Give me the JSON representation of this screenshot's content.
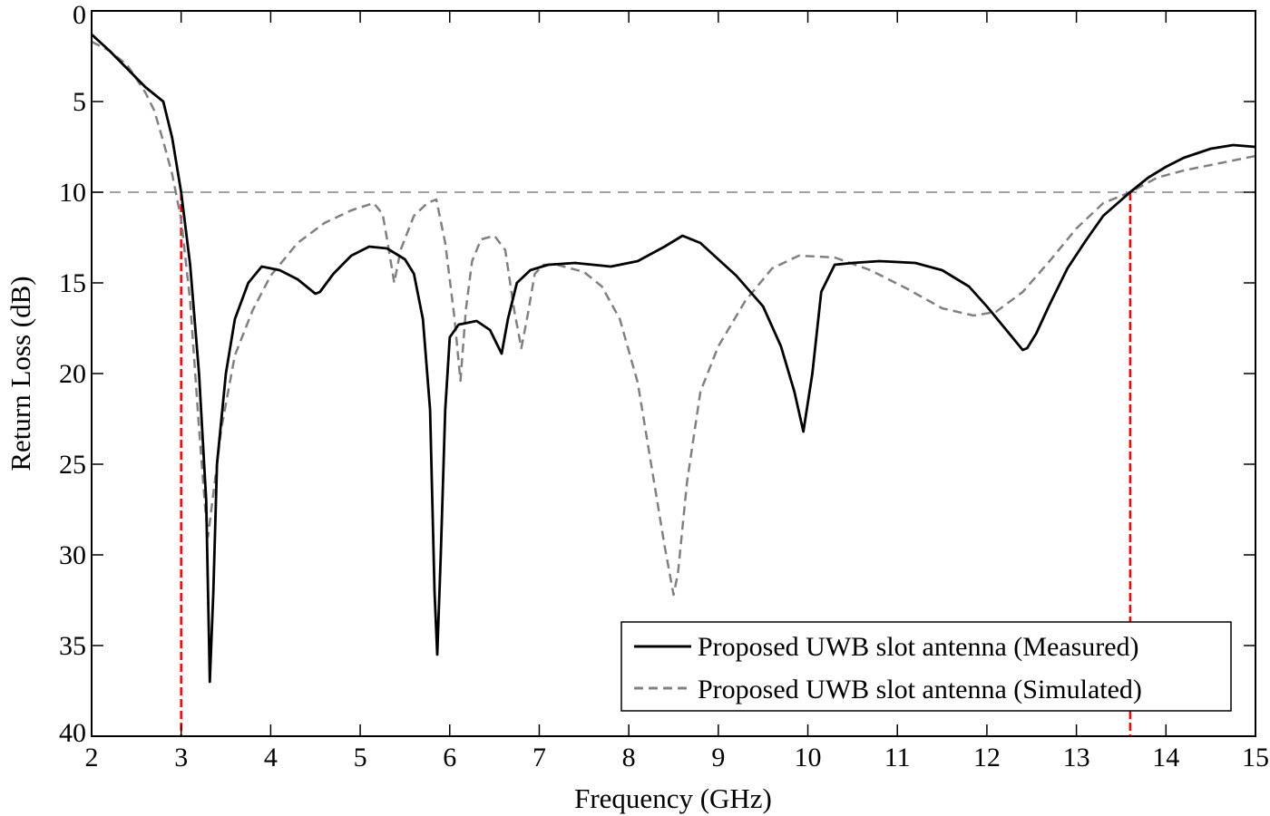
{
  "chart_data": {
    "type": "line",
    "title": "",
    "xlabel": "Frequency (GHz)",
    "ylabel": "Return Loss (dB)",
    "xlim": [
      2,
      15
    ],
    "ylim": [
      0,
      40
    ],
    "y_inverted": true,
    "grid": false,
    "x_ticks": [
      2,
      3,
      4,
      5,
      6,
      7,
      8,
      9,
      10,
      11,
      12,
      13,
      14,
      15
    ],
    "y_ticks": [
      0,
      5,
      10,
      15,
      20,
      25,
      30,
      35,
      40
    ],
    "legend_position": "lower right",
    "reference_lines": [
      {
        "type": "horizontal",
        "y": 10,
        "style": "dashed",
        "color": "#808080"
      },
      {
        "type": "vertical",
        "x": 3.0,
        "y_from": 10,
        "y_to": 40,
        "style": "dashed",
        "color": "#ff0000"
      },
      {
        "type": "vertical",
        "x": 13.6,
        "y_from": 10,
        "y_to": 40,
        "style": "dashed",
        "color": "#ff0000"
      }
    ],
    "series": [
      {
        "name": "Proposed UWB slot antenna (Measured)",
        "style": "solid",
        "color": "#000000",
        "x": [
          2.0,
          2.2,
          2.4,
          2.6,
          2.8,
          2.9,
          3.0,
          3.1,
          3.2,
          3.28,
          3.32,
          3.36,
          3.4,
          3.5,
          3.6,
          3.75,
          3.9,
          4.1,
          4.3,
          4.5,
          4.55,
          4.7,
          4.9,
          5.1,
          5.3,
          5.5,
          5.6,
          5.7,
          5.78,
          5.83,
          5.86,
          5.9,
          5.95,
          6.0,
          6.1,
          6.3,
          6.45,
          6.55,
          6.58,
          6.65,
          6.75,
          6.9,
          7.1,
          7.4,
          7.8,
          8.1,
          8.4,
          8.6,
          8.8,
          9.0,
          9.2,
          9.5,
          9.7,
          9.85,
          9.95,
          10.05,
          10.15,
          10.3,
          10.5,
          10.8,
          11.2,
          11.5,
          11.8,
          12.0,
          12.2,
          12.4,
          12.45,
          12.55,
          12.7,
          12.9,
          13.1,
          13.3,
          13.6,
          13.8,
          14.0,
          14.2,
          14.5,
          14.75,
          15.0
        ],
        "values": [
          1.3,
          2.2,
          3.2,
          4.2,
          5.0,
          7.0,
          10.0,
          14.0,
          20.0,
          27.0,
          37.0,
          32.0,
          25.0,
          20.0,
          17.0,
          15.0,
          14.1,
          14.3,
          14.8,
          15.6,
          15.5,
          14.5,
          13.5,
          13.0,
          13.1,
          13.7,
          14.5,
          17.0,
          22.0,
          32.0,
          35.5,
          30.0,
          22.0,
          18.0,
          17.3,
          17.1,
          17.6,
          18.6,
          18.9,
          17.0,
          15.0,
          14.3,
          14.0,
          13.9,
          14.1,
          13.8,
          13.0,
          12.4,
          12.8,
          13.7,
          14.6,
          16.3,
          18.5,
          21.0,
          23.2,
          20.0,
          15.5,
          14.0,
          13.9,
          13.8,
          13.9,
          14.3,
          15.2,
          16.3,
          17.5,
          18.7,
          18.6,
          17.8,
          16.2,
          14.2,
          12.7,
          11.3,
          10.0,
          9.2,
          8.6,
          8.1,
          7.6,
          7.4,
          7.5
        ]
      },
      {
        "name": "Proposed UWB slot antenna (Simulated)",
        "style": "dashed",
        "color": "#808080",
        "x": [
          2.0,
          2.2,
          2.4,
          2.6,
          2.7,
          2.8,
          2.9,
          3.0,
          3.1,
          3.2,
          3.27,
          3.3,
          3.35,
          3.45,
          3.6,
          3.8,
          4.0,
          4.3,
          4.6,
          4.9,
          5.15,
          5.25,
          5.3,
          5.38,
          5.45,
          5.6,
          5.75,
          5.85,
          5.95,
          6.05,
          6.12,
          6.18,
          6.25,
          6.35,
          6.5,
          6.62,
          6.72,
          6.8,
          6.87,
          6.95,
          7.05,
          7.2,
          7.5,
          7.7,
          7.9,
          8.1,
          8.25,
          8.4,
          8.5,
          8.55,
          8.65,
          8.8,
          9.0,
          9.3,
          9.6,
          9.9,
          10.3,
          10.7,
          11.1,
          11.5,
          11.85,
          12.1,
          12.4,
          12.7,
          13.0,
          13.3,
          13.6,
          13.9,
          14.2,
          14.6,
          15.0
        ],
        "values": [
          1.7,
          2.2,
          3.0,
          4.5,
          5.5,
          7.2,
          9.0,
          11.5,
          16.0,
          23.0,
          27.5,
          29.0,
          27.0,
          23.0,
          19.0,
          16.5,
          14.6,
          12.8,
          11.7,
          11.0,
          10.6,
          11.2,
          12.6,
          15.0,
          13.2,
          11.3,
          10.6,
          10.4,
          12.8,
          16.8,
          20.4,
          16.5,
          13.8,
          12.6,
          12.4,
          13.2,
          16.5,
          18.6,
          16.8,
          14.5,
          14.0,
          14.0,
          14.4,
          15.2,
          17.0,
          20.5,
          25.0,
          29.5,
          32.2,
          31.0,
          26.0,
          21.0,
          18.5,
          16.0,
          14.2,
          13.5,
          13.6,
          14.3,
          15.3,
          16.4,
          16.8,
          16.6,
          15.5,
          13.8,
          12.0,
          10.6,
          10.0,
          9.2,
          8.8,
          8.4,
          8.0
        ]
      }
    ]
  },
  "axes": {
    "xlabel": "Frequency (GHz)",
    "ylabel": "Return Loss (dB)",
    "x_tick_labels": [
      "2",
      "3",
      "4",
      "5",
      "6",
      "7",
      "8",
      "9",
      "10",
      "11",
      "12",
      "13",
      "14",
      "15"
    ],
    "y_tick_labels": [
      "0",
      "5",
      "10",
      "15",
      "20",
      "25",
      "30",
      "35",
      "40"
    ]
  },
  "legend": {
    "items": [
      {
        "label": "Proposed UWB slot antenna (Measured)",
        "color": "#000000",
        "style": "solid"
      },
      {
        "label": "Proposed UWB slot antenna (Simulated)",
        "color": "#808080",
        "style": "dashed"
      }
    ]
  },
  "colors": {
    "measured": "#000000",
    "simulated": "#808080",
    "threshold": "#808080",
    "band_markers": "#ff0000",
    "axes": "#000000",
    "background": "#ffffff"
  }
}
